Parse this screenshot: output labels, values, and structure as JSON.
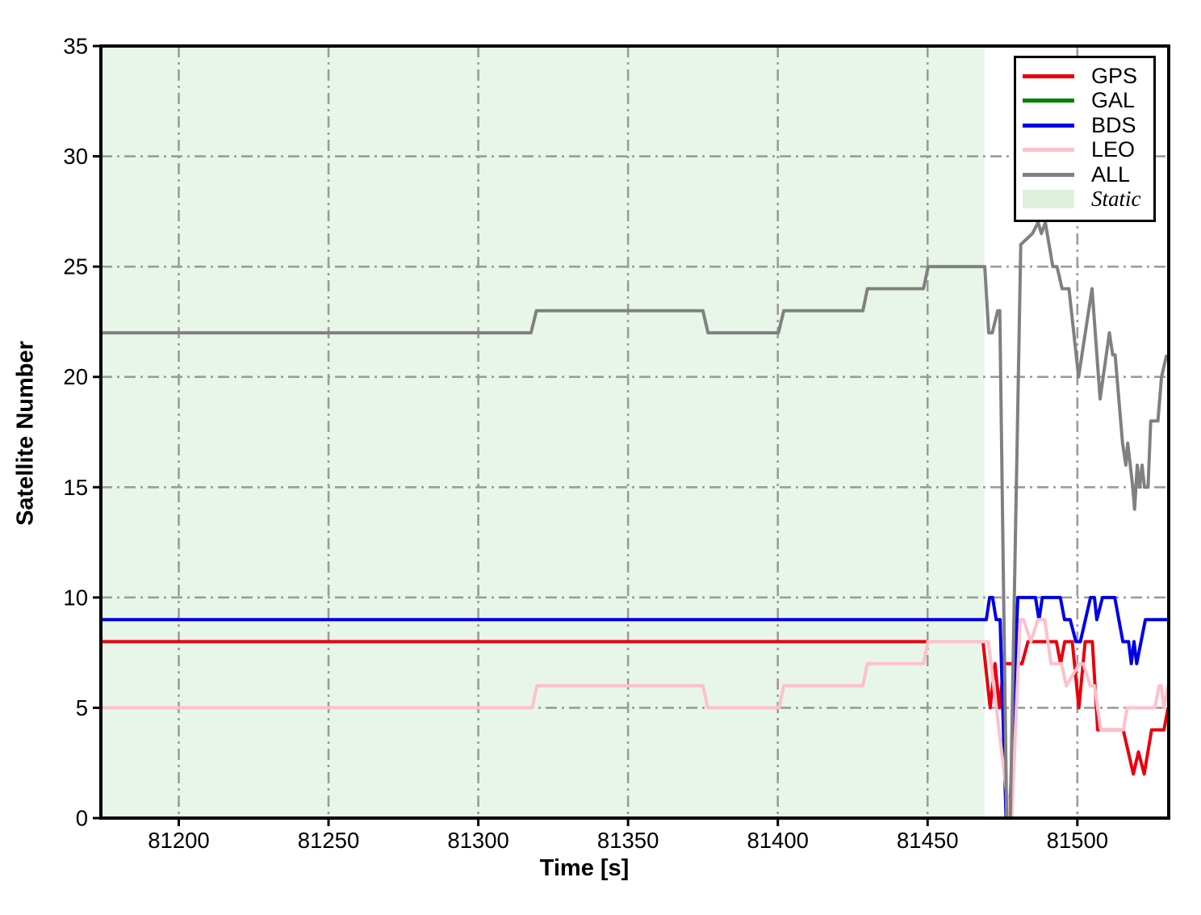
{
  "chart_data": {
    "type": "line",
    "title": "",
    "xlabel": "Time [s]",
    "ylabel": "Satellite Number",
    "xlim": [
      81174,
      81530.5
    ],
    "ylim": [
      0,
      35
    ],
    "x_ticks": [
      81200,
      81250,
      81300,
      81350,
      81400,
      81450,
      81500
    ],
    "y_ticks": [
      0,
      5,
      10,
      15,
      20,
      25,
      30,
      35
    ],
    "grid": {
      "on": true,
      "style": "dashdot",
      "color": "#9b9b9b"
    },
    "legend_position": "upper right",
    "static_region": {
      "label": "Static",
      "x_start": 81174,
      "x_end": 81469,
      "fill": "#e8f6e9",
      "legend_patch_fill": "#ddf1dd"
    },
    "series": [
      {
        "name": "GPS",
        "color": "#e8000b",
        "points": [
          [
            81174,
            8
          ],
          [
            81468.5,
            8
          ],
          [
            81470.9,
            5
          ],
          [
            81472.5,
            7
          ],
          [
            81474,
            5
          ],
          [
            81475.5,
            7
          ],
          [
            81481.5,
            7
          ],
          [
            81483.5,
            8
          ],
          [
            81493,
            8
          ],
          [
            81494.4,
            7
          ],
          [
            81495.8,
            8
          ],
          [
            81498.3,
            8
          ],
          [
            81500.5,
            5
          ],
          [
            81502.6,
            8
          ],
          [
            81505,
            8
          ],
          [
            81506.8,
            4
          ],
          [
            81515.3,
            4
          ],
          [
            81518.7,
            2
          ],
          [
            81520.4,
            3
          ],
          [
            81522.3,
            2
          ],
          [
            81524.8,
            4
          ],
          [
            81528.9,
            4
          ],
          [
            81530.3,
            5
          ]
        ]
      },
      {
        "name": "GAL",
        "color": "#008000",
        "points": [
          [
            81174,
            0
          ],
          [
            81530.5,
            0
          ]
        ]
      },
      {
        "name": "BDS",
        "color": "#0000e6",
        "points": [
          [
            81174,
            9
          ],
          [
            81469.6,
            9
          ],
          [
            81470.7,
            10
          ],
          [
            81471.7,
            10
          ],
          [
            81472.9,
            9
          ],
          [
            81474.2,
            9
          ],
          [
            81476.2,
            0
          ],
          [
            81477.4,
            0
          ],
          [
            81480.1,
            10
          ],
          [
            81486,
            10
          ],
          [
            81487.2,
            9
          ],
          [
            81488.3,
            10
          ],
          [
            81494.3,
            10
          ],
          [
            81495.7,
            9
          ],
          [
            81497.6,
            9
          ],
          [
            81499.5,
            8
          ],
          [
            81501,
            8
          ],
          [
            81504.4,
            10
          ],
          [
            81505.7,
            10
          ],
          [
            81506.5,
            9
          ],
          [
            81508.4,
            10
          ],
          [
            81512.5,
            10
          ],
          [
            81515.2,
            8
          ],
          [
            81517.1,
            8
          ],
          [
            81518,
            7
          ],
          [
            81518.9,
            8
          ],
          [
            81519.8,
            7
          ],
          [
            81522.7,
            9
          ],
          [
            81530.5,
            9
          ]
        ]
      },
      {
        "name": "LEO",
        "color": "#ffc0cb",
        "points": [
          [
            81174,
            5
          ],
          [
            81318,
            5
          ],
          [
            81319.6,
            6
          ],
          [
            81375,
            6
          ],
          [
            81376.6,
            5
          ],
          [
            81400.4,
            5
          ],
          [
            81402,
            6
          ],
          [
            81428.4,
            6
          ],
          [
            81429.9,
            7
          ],
          [
            81448.6,
            7
          ],
          [
            81450.1,
            8
          ],
          [
            81470.3,
            8
          ],
          [
            81477.4,
            0
          ],
          [
            81478.1,
            0
          ],
          [
            81480.9,
            9
          ],
          [
            81482,
            9
          ],
          [
            81484.5,
            8
          ],
          [
            81486.8,
            9
          ],
          [
            81489.1,
            9
          ],
          [
            81491.2,
            7
          ],
          [
            81494.7,
            7
          ],
          [
            81496.3,
            6
          ],
          [
            81500.7,
            7
          ],
          [
            81502,
            7
          ],
          [
            81504.3,
            6
          ],
          [
            81505.7,
            6
          ],
          [
            81507.8,
            4
          ],
          [
            81515.4,
            4
          ],
          [
            81516.6,
            5
          ],
          [
            81525.9,
            5
          ],
          [
            81527.3,
            6
          ],
          [
            81528,
            6
          ],
          [
            81528.9,
            5
          ],
          [
            81530.2,
            6
          ]
        ]
      },
      {
        "name": "ALL",
        "color": "#808080",
        "points": [
          [
            81174,
            22
          ],
          [
            81317.6,
            22
          ],
          [
            81319.4,
            23
          ],
          [
            81375,
            23
          ],
          [
            81376.7,
            22
          ],
          [
            81400.2,
            22
          ],
          [
            81402,
            23
          ],
          [
            81428.4,
            23
          ],
          [
            81429.9,
            24
          ],
          [
            81448.6,
            24
          ],
          [
            81450.2,
            25
          ],
          [
            81469.1,
            25
          ],
          [
            81470.4,
            22
          ],
          [
            81471.6,
            22
          ],
          [
            81473.4,
            23
          ],
          [
            81474.1,
            23
          ],
          [
            81476.4,
            0
          ],
          [
            81477.6,
            0
          ],
          [
            81481.1,
            26
          ],
          [
            81485,
            26.5
          ],
          [
            81486.9,
            27
          ],
          [
            81488,
            26.5
          ],
          [
            81489.3,
            27
          ],
          [
            81491.8,
            25
          ],
          [
            81493.2,
            25
          ],
          [
            81494.9,
            24
          ],
          [
            81497.2,
            24
          ],
          [
            81500.4,
            20
          ],
          [
            81504.9,
            24
          ],
          [
            81507.6,
            19
          ],
          [
            81510.7,
            22
          ],
          [
            81511.8,
            21
          ],
          [
            81512.6,
            21
          ],
          [
            81515.1,
            17
          ],
          [
            81516.2,
            16
          ],
          [
            81516.8,
            17
          ],
          [
            81518.5,
            15
          ],
          [
            81519.1,
            14
          ],
          [
            81520,
            16
          ],
          [
            81520.8,
            15
          ],
          [
            81521.6,
            16
          ],
          [
            81522.4,
            15
          ],
          [
            81523.6,
            15
          ],
          [
            81524.5,
            18
          ],
          [
            81526.9,
            18
          ],
          [
            81528.1,
            20
          ],
          [
            81529.8,
            21
          ]
        ]
      }
    ],
    "legend_entries": [
      "GPS",
      "GAL",
      "BDS",
      "LEO",
      "ALL",
      "Static"
    ]
  }
}
